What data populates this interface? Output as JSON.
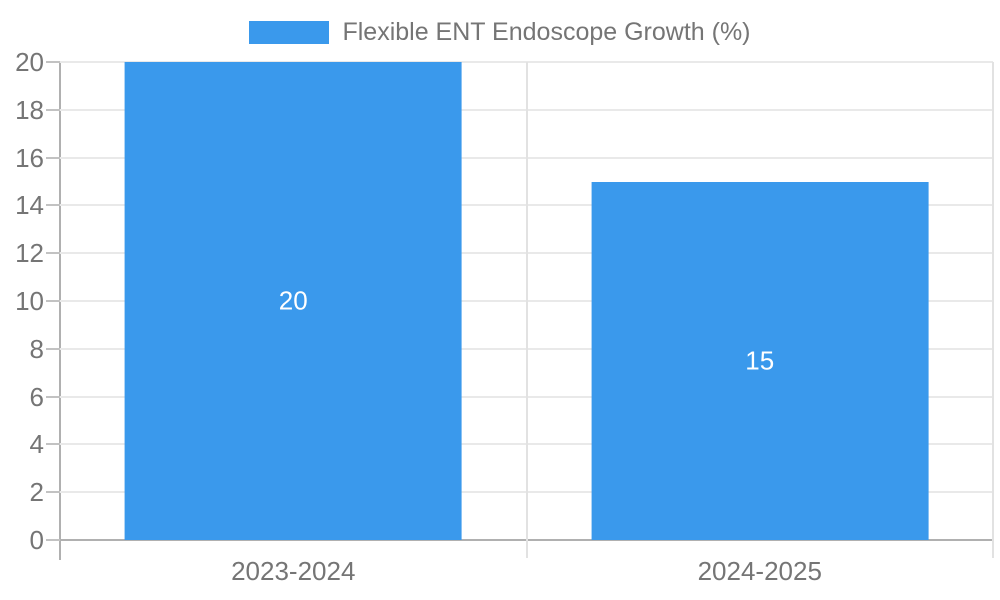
{
  "chart_data": {
    "type": "bar",
    "title": "Flexible ENT Endoscope Growth (%)",
    "categories": [
      "2023-2024",
      "2024-2025"
    ],
    "values": [
      20,
      15
    ],
    "data_labels": [
      "20",
      "15"
    ],
    "xlabel": "",
    "ylabel": "",
    "ylim": [
      0,
      20
    ],
    "yticks": [
      0,
      2,
      4,
      6,
      8,
      10,
      12,
      14,
      16,
      18,
      20
    ],
    "grid": true,
    "legend_position": "top-center",
    "bar_width_ratio": 0.722,
    "colors": {
      "bar": "#3a99ec",
      "data_label": "#ffffff",
      "axis_text": "#757575",
      "gridline": "#e9e9e9",
      "boundary_line": "#e2e2e2",
      "axis_line": "#b0b0b0",
      "tick": "#c2c2c2",
      "background": "#ffffff"
    }
  }
}
